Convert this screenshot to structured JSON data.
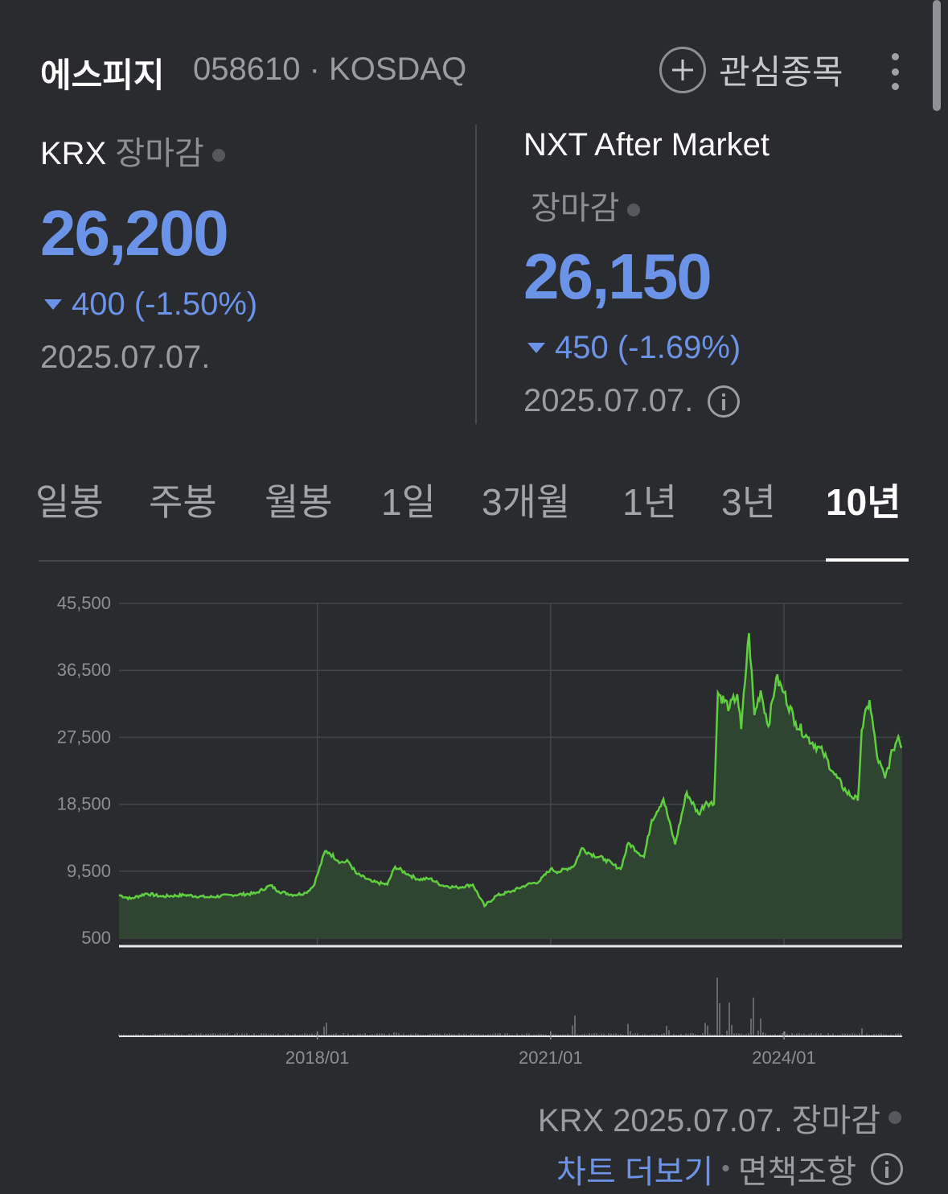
{
  "header": {
    "stock_name": "에스피지",
    "code_market": "058610 · KOSDAQ",
    "watch_label": "관심종목"
  },
  "krx": {
    "label": "KRX",
    "status": "장마감",
    "price": "26,200",
    "change": "400 (-1.50%)",
    "date": "2025.07.07."
  },
  "nxt": {
    "label": "NXT After Market",
    "status": "장마감",
    "price": "26,150",
    "change": "450 (-1.69%)",
    "date": "2025.07.07."
  },
  "tabs": [
    "일봉",
    "주봉",
    "월봉",
    "1일",
    "3개월",
    "1년",
    "3년",
    "10년"
  ],
  "active_tab": "10년",
  "colors": {
    "price_down": "#6b93e8",
    "line": "#5fcf40",
    "fill": "#2f4532"
  },
  "chart_data": {
    "type": "area",
    "y_ticks": [
      "45,500",
      "36,500",
      "27,500",
      "18,500",
      "9,500",
      "500"
    ],
    "ylim": [
      500,
      45500
    ],
    "x_ticks": [
      "2018/01",
      "2021/01",
      "2024/01"
    ],
    "xlim": [
      2015.45,
      2025.52
    ],
    "grid": true,
    "series": [
      {
        "x": [
          2015.45,
          2015.6,
          2015.8,
          2016.0,
          2016.3,
          2016.6,
          2016.9,
          2017.2,
          2017.4,
          2017.5,
          2017.7,
          2017.85,
          2017.95,
          2018.0,
          2018.1,
          2018.15,
          2018.3,
          2018.4,
          2018.5,
          2018.7,
          2018.9,
          2019.0,
          2019.2,
          2019.3,
          2019.45,
          2019.6,
          2019.8,
          2020.0,
          2020.15,
          2020.3,
          2020.5,
          2020.7,
          2020.85,
          2021.0,
          2021.1,
          2021.3,
          2021.4,
          2021.5,
          2021.7,
          2021.8,
          2021.9,
          2022.0,
          2022.2,
          2022.3,
          2022.45,
          2022.6,
          2022.75,
          2022.9,
          2023.0,
          2023.1,
          2023.15,
          2023.3,
          2023.4,
          2023.45,
          2023.55,
          2023.62,
          2023.7,
          2023.8,
          2023.9,
          2024.0,
          2024.15,
          2024.3,
          2024.5,
          2024.65,
          2024.8,
          2024.95,
          2025.0,
          2025.1,
          2025.2,
          2025.3,
          2025.4,
          2025.47,
          2025.52
        ],
        "y": [
          6300,
          5800,
          6500,
          6100,
          6300,
          6000,
          6300,
          6500,
          7600,
          6800,
          6300,
          6600,
          7500,
          9000,
          12200,
          12000,
          10700,
          10800,
          9200,
          8100,
          7700,
          10100,
          8900,
          8400,
          8500,
          7600,
          7300,
          7700,
          4800,
          6200,
          6800,
          7700,
          8100,
          9800,
          9400,
          10200,
          12600,
          11900,
          11100,
          10400,
          9800,
          13300,
          11400,
          16400,
          19200,
          13100,
          20100,
          17200,
          18800,
          18500,
          33500,
          31500,
          33300,
          28600,
          41500,
          30500,
          33800,
          29000,
          35500,
          33500,
          29500,
          27500,
          25500,
          22500,
          20200,
          19000,
          28500,
          32500,
          24800,
          22000,
          25800,
          27600,
          26200
        ]
      }
    ],
    "volume": {
      "x": [
        2016.0,
        2017.0,
        2018.0,
        2018.1,
        2019.0,
        2020.0,
        2021.0,
        2021.3,
        2022.0,
        2022.5,
        2023.0,
        2023.15,
        2023.3,
        2023.6,
        2023.7,
        2024.0,
        2025.0
      ],
      "v": [
        3,
        2,
        5,
        28,
        8,
        4,
        3,
        34,
        22,
        18,
        24,
        98,
        44,
        62,
        30,
        12,
        10
      ]
    }
  },
  "footer": {
    "krx_status": "KRX 2025.07.07. 장마감",
    "more_chart": "차트 더보기",
    "disclaimer": "면책조항"
  }
}
